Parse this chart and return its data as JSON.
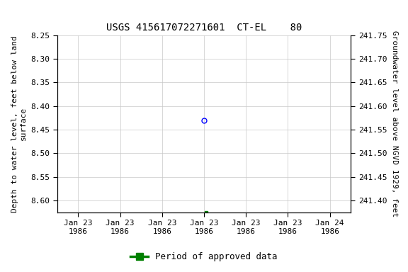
{
  "title": "USGS 415617072271601  CT-EL    80",
  "left_ylabel_lines": [
    "Depth to water level, feet below land",
    "surface"
  ],
  "right_ylabel": "Groundwater level above NGVD 1929, feet",
  "ylim_left_top": 8.25,
  "ylim_left_bottom": 8.625,
  "ylim_right_top": 241.75,
  "ylim_right_bottom": 241.375,
  "left_yticks": [
    8.25,
    8.3,
    8.35,
    8.4,
    8.45,
    8.5,
    8.55,
    8.6
  ],
  "right_yticks": [
    241.75,
    241.7,
    241.65,
    241.6,
    241.55,
    241.5,
    241.45,
    241.4
  ],
  "xtick_labels": [
    "Jan 23\n1986",
    "Jan 23\n1986",
    "Jan 23\n1986",
    "Jan 23\n1986",
    "Jan 23\n1986",
    "Jan 23\n1986",
    "Jan 24\n1986"
  ],
  "xtick_positions": [
    0,
    1,
    2,
    3,
    4,
    5,
    6
  ],
  "data_blue_x": 3.0,
  "data_blue_y": 8.43,
  "data_green_x": 3.05,
  "data_green_y": 8.625,
  "legend_label": "Period of approved data",
  "bg_color": "#ffffff",
  "grid_color": "#c8c8c8",
  "title_fontsize": 10,
  "axis_label_fontsize": 8,
  "tick_fontsize": 8,
  "legend_fontsize": 9,
  "blue_marker_size": 5,
  "green_marker_size": 3
}
